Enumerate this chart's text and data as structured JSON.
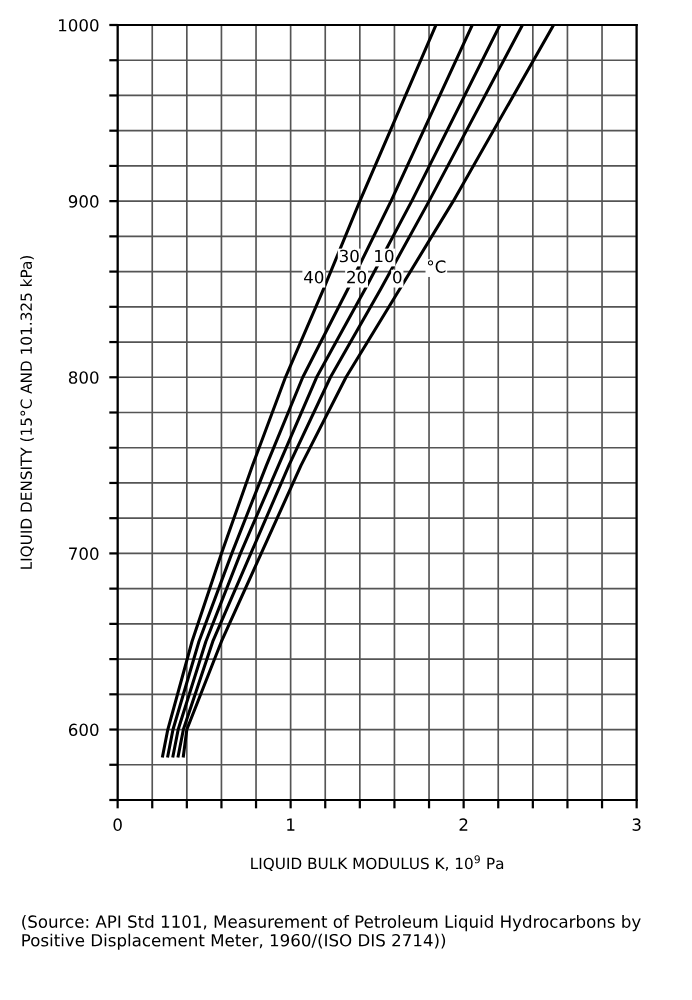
{
  "chart_data": {
    "type": "line",
    "xlabel": "LIQUID BULK MODULUS K, 10$^{9}$ Pa",
    "ylabel": "LIQUID DENSITY (15°C AND 101.325 kPa)",
    "annotations": [
      "°C",
      "(Source: API Std 1101, Measurement of Petroleum Liquid Hydrocarbons by Positive Displacement Meter, 1960/(ISO DIS 2714))"
    ],
    "x": [
      585,
      600,
      650,
      700,
      750,
      800,
      850,
      900,
      1000
    ],
    "series": [
      {
        "name": "40",
        "color": "#000000",
        "values": [
          0.26,
          0.29,
          0.43,
          0.6,
          0.78,
          0.97,
          1.19,
          1.4,
          1.84
        ]
      },
      {
        "name": "30",
        "color": "#000000",
        "values": [
          0.29,
          0.32,
          0.47,
          0.66,
          0.86,
          1.07,
          1.33,
          1.58,
          2.05
        ]
      },
      {
        "name": "20",
        "color": "#000000",
        "values": [
          0.32,
          0.35,
          0.51,
          0.71,
          0.93,
          1.15,
          1.43,
          1.7,
          2.21
        ]
      },
      {
        "name": "10",
        "color": "#000000",
        "values": [
          0.35,
          0.38,
          0.55,
          0.77,
          0.99,
          1.23,
          1.52,
          1.8,
          2.34
        ]
      },
      {
        "name": "0",
        "color": "#000000",
        "values": [
          0.38,
          0.4,
          0.6,
          0.83,
          1.06,
          1.32,
          1.63,
          1.94,
          2.52
        ]
      }
    ],
    "orientation": "horizontal",
    "xlim": [
      0,
      3
    ],
    "ylim": [
      560,
      1000
    ],
    "xticks": [
      0,
      {
        "value": 0.2,
        "label": null
      },
      {
        "value": 0.4,
        "label": null
      },
      {
        "value": 0.6,
        "label": null
      },
      {
        "value": 0.8,
        "label": null
      },
      1,
      {
        "value": 1.2,
        "label": null
      },
      {
        "value": 1.4,
        "label": null
      },
      {
        "value": 1.6,
        "label": null
      },
      {
        "value": 1.8,
        "label": null
      },
      2,
      {
        "value": 2.2,
        "label": null
      },
      {
        "value": 2.4,
        "label": null
      },
      {
        "value": 2.6,
        "label": null
      },
      {
        "value": 2.8,
        "label": null
      },
      3
    ],
    "yticks": [
      {
        "value": 560,
        "label": null
      },
      {
        "value": 580,
        "label": null
      },
      600,
      {
        "value": 620,
        "label": null
      },
      {
        "value": 640,
        "label": null
      },
      {
        "value": 660,
        "label": null
      },
      {
        "value": 680,
        "label": null
      },
      700,
      {
        "value": 720,
        "label": null
      },
      {
        "value": 740,
        "label": null
      },
      {
        "value": 760,
        "label": null
      },
      {
        "value": 780,
        "label": null
      },
      800,
      {
        "value": 820,
        "label": null
      },
      {
        "value": 840,
        "label": null
      },
      {
        "value": 860,
        "label": null
      },
      {
        "value": 880,
        "label": null
      },
      900,
      {
        "value": 920,
        "label": null
      },
      {
        "value": 940,
        "label": null
      },
      {
        "value": 960,
        "label": null
      },
      {
        "value": 980,
        "label": null
      },
      1000
    ],
    "grid": true,
    "line_style": "solid"
  }
}
